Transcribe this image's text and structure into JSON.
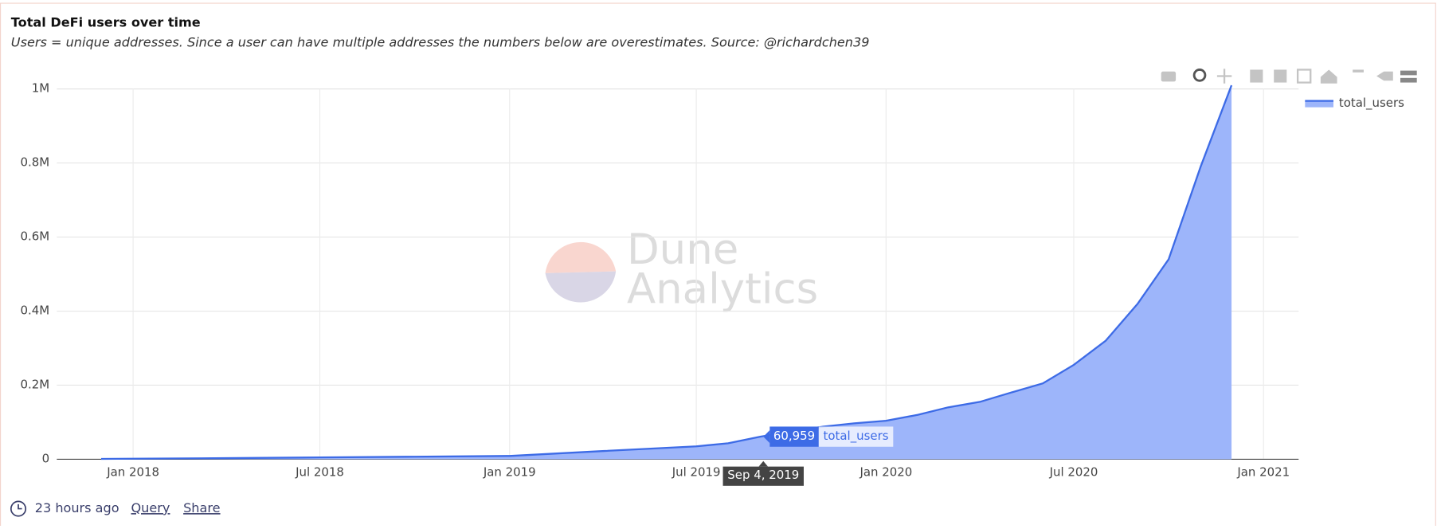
{
  "chart_data": {
    "type": "area",
    "title": "Total DeFi users over time",
    "subtitle": "Users = unique addresses. Since a user can have multiple addresses the numbers below are overestimates. Source: @richardchen39",
    "series": [
      {
        "name": "total_users",
        "color": "#3d6be6",
        "fill_color": "#9db5fa",
        "x": [
          "2017-12",
          "2018-01",
          "2018-04",
          "2018-07",
          "2018-10",
          "2019-01",
          "2019-04",
          "2019-07",
          "2019-08",
          "2019-09",
          "2019-10",
          "2019-11",
          "2019-12",
          "2020-01",
          "2020-02",
          "2020-03",
          "2020-04",
          "2020-05",
          "2020-06",
          "2020-07",
          "2020-08",
          "2020-09",
          "2020-10",
          "2020-11",
          "2020-12"
        ],
        "values": [
          1000,
          1500,
          3000,
          5000,
          7000,
          9000,
          22000,
          35000,
          43000,
          60959,
          75000,
          88000,
          97000,
          104000,
          120000,
          140000,
          155000,
          180000,
          205000,
          255000,
          320000,
          420000,
          540000,
          790000,
          1010000
        ]
      }
    ],
    "xlim": [
      "2017-10-19",
      "2021-02-04"
    ],
    "xticks": [
      {
        "value": "2018-01",
        "label": "Jan 2018"
      },
      {
        "value": "2018-07",
        "label": "Jul 2018"
      },
      {
        "value": "2019-01",
        "label": "Jan 2019"
      },
      {
        "value": "2019-07",
        "label": "Jul 2019"
      },
      {
        "value": "2020-01",
        "label": "Jan 2020"
      },
      {
        "value": "2020-07",
        "label": "Jul 2020"
      },
      {
        "value": "2021-01",
        "label": "Jan 2021"
      }
    ],
    "ylim": [
      0,
      1000000
    ],
    "yticks": [
      0,
      {
        "value": 200000,
        "label": "0.2M"
      },
      {
        "value": 400000,
        "label": "0.4M"
      },
      {
        "value": 600000,
        "label": "0.6M"
      },
      {
        "value": 800000,
        "label": "0.8M"
      },
      {
        "value": 1000000,
        "label": "1M"
      }
    ],
    "grid": true,
    "legend": "top-right",
    "hover": {
      "x": "Sep 4, 2019",
      "value": 60959,
      "value_label": "60,959"
    },
    "watermark": [
      "Dune",
      "Analytics"
    ],
    "footer": {
      "updated": "23 hours ago",
      "links": [
        "Query",
        "Share"
      ]
    }
  }
}
